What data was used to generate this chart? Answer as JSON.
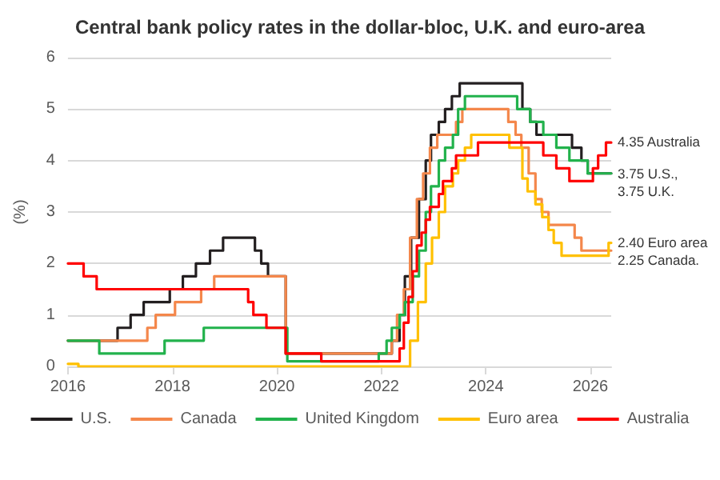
{
  "chart_data": {
    "type": "step",
    "title": "Central bank policy rates in the dollar-bloc, U.K. and euro-area",
    "ylabel": "(%)",
    "xlim": [
      2016,
      2026.4
    ],
    "xticks": [
      2016,
      2018,
      2020,
      2022,
      2024,
      2026
    ],
    "ylim": [
      0,
      6
    ],
    "yticks": [
      0,
      1,
      2,
      3,
      4,
      5,
      6
    ],
    "grid": "y",
    "legend": "bottom",
    "series": [
      {
        "name": "U.S.",
        "color": "#231f20",
        "x": [
          2016,
          2016.95,
          2017.2,
          2017.45,
          2017.95,
          2018.2,
          2018.45,
          2018.72,
          2018.97,
          2019.58,
          2019.7,
          2019.83,
          2020.17,
          2022.2,
          2022.35,
          2022.45,
          2022.57,
          2022.72,
          2022.85,
          2022.95,
          2023.1,
          2023.22,
          2023.35,
          2023.5,
          2024.7,
          2024.85,
          2024.97,
          2025.65,
          2025.83,
          2025.95,
          2026.4
        ],
        "values": [
          0.5,
          0.75,
          1.0,
          1.25,
          1.5,
          1.75,
          2.0,
          2.25,
          2.5,
          2.25,
          2.0,
          1.75,
          0.25,
          0.5,
          1.0,
          1.75,
          2.5,
          3.25,
          4.0,
          4.5,
          4.75,
          5.0,
          5.25,
          5.5,
          5.0,
          4.75,
          4.5,
          4.25,
          4.0,
          3.75,
          3.75
        ]
      },
      {
        "name": "Canada",
        "color": "#f4874b",
        "x": [
          2016,
          2017.52,
          2017.68,
          2018.05,
          2018.55,
          2018.8,
          2020.17,
          2022.2,
          2022.3,
          2022.43,
          2022.55,
          2022.68,
          2022.8,
          2022.93,
          2023.07,
          2023.43,
          2023.55,
          2024.43,
          2024.57,
          2024.68,
          2024.82,
          2024.95,
          2025.07,
          2025.2,
          2025.7,
          2025.83,
          2026.4
        ],
        "values": [
          0.5,
          0.75,
          1.0,
          1.25,
          1.5,
          1.75,
          0.25,
          0.5,
          1.0,
          1.5,
          2.5,
          3.25,
          3.75,
          4.25,
          4.5,
          4.75,
          5.0,
          4.75,
          4.5,
          4.25,
          3.75,
          3.25,
          3.0,
          2.75,
          2.5,
          2.25,
          2.25
        ]
      },
      {
        "name": "United Kingdom",
        "color": "#22b24c",
        "x": [
          2016,
          2016.6,
          2017.85,
          2018.6,
          2020.2,
          2021.95,
          2022.1,
          2022.2,
          2022.35,
          2022.45,
          2022.6,
          2022.72,
          2022.85,
          2022.95,
          2023.1,
          2023.22,
          2023.37,
          2023.47,
          2023.6,
          2024.6,
          2024.85,
          2025.1,
          2025.35,
          2025.6,
          2025.95,
          2026.4
        ],
        "values": [
          0.5,
          0.25,
          0.5,
          0.75,
          0.1,
          0.25,
          0.5,
          0.75,
          1.0,
          1.25,
          1.75,
          2.25,
          3.0,
          3.5,
          4.0,
          4.25,
          4.5,
          5.0,
          5.25,
          5.0,
          4.75,
          4.5,
          4.25,
          4.0,
          3.75,
          3.75
        ]
      },
      {
        "name": "Euro area",
        "color": "#ffc000",
        "x": [
          2016,
          2016.2,
          2022.55,
          2022.7,
          2022.85,
          2022.97,
          2023.1,
          2023.22,
          2023.37,
          2023.47,
          2023.6,
          2023.72,
          2024.45,
          2024.7,
          2024.8,
          2024.95,
          2025.08,
          2025.2,
          2025.3,
          2025.45,
          2026.35,
          2026.4
        ],
        "values": [
          0.05,
          0,
          0.5,
          1.25,
          2.0,
          2.5,
          3.0,
          3.5,
          3.75,
          4.0,
          4.25,
          4.5,
          4.25,
          3.65,
          3.4,
          3.15,
          2.9,
          2.65,
          2.4,
          2.15,
          2.4,
          2.4
        ]
      },
      {
        "name": "Australia",
        "color": "#ff0000",
        "x": [
          2016,
          2016.3,
          2016.55,
          2019.45,
          2019.55,
          2019.8,
          2020.17,
          2020.85,
          2022.35,
          2022.43,
          2022.52,
          2022.6,
          2022.68,
          2022.77,
          2022.85,
          2022.93,
          2023.1,
          2023.18,
          2023.35,
          2023.43,
          2023.85,
          2025.1,
          2025.35,
          2025.6,
          2026.05,
          2026.15,
          2026.3,
          2026.4
        ],
        "values": [
          2.0,
          1.75,
          1.5,
          1.25,
          1.0,
          0.75,
          0.25,
          0.1,
          0.35,
          0.85,
          1.35,
          1.85,
          2.35,
          2.6,
          2.85,
          3.1,
          3.35,
          3.6,
          3.85,
          4.1,
          4.35,
          4.1,
          3.85,
          3.6,
          3.85,
          4.1,
          4.35,
          4.35
        ]
      }
    ],
    "annotations": [
      "4.35 Australia",
      "3.75 U.S.,",
      "3.75 U.K.",
      "2.40 Euro area",
      "2.25 Canada."
    ]
  }
}
